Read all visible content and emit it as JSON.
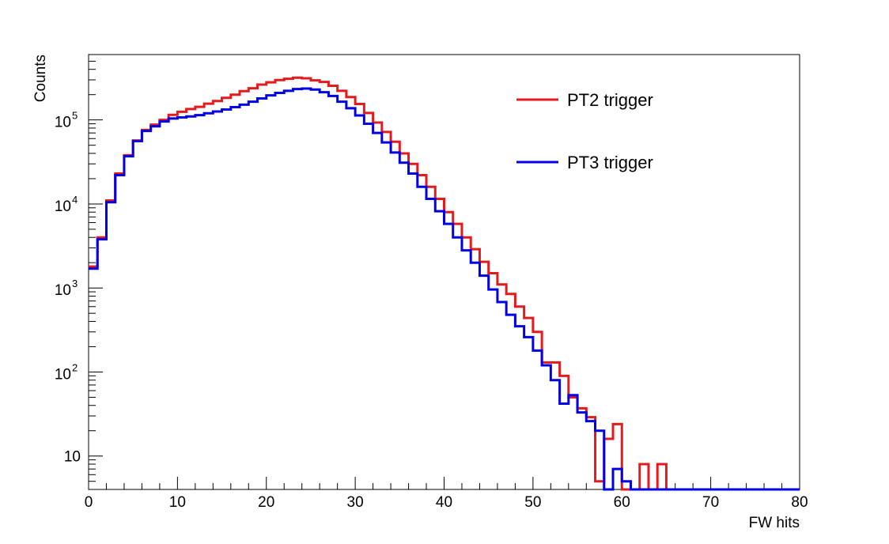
{
  "chart_data": {
    "type": "histogram-step",
    "xlabel": "FW hits",
    "ylabel": "Counts",
    "x_range": [
      0,
      80
    ],
    "y_range": [
      4,
      600000
    ],
    "y_scale": "log",
    "bin_width": 1,
    "grid": false,
    "legend_position": "top-right",
    "x_ticks": [
      0,
      10,
      20,
      30,
      40,
      50,
      60,
      70,
      80
    ],
    "y_ticks": [
      10,
      100,
      1000,
      10000,
      100000
    ],
    "y_tick_labels": [
      {
        "base": "10",
        "exp": ""
      },
      {
        "base": "10",
        "exp": "2"
      },
      {
        "base": "10",
        "exp": "3"
      },
      {
        "base": "10",
        "exp": "4"
      },
      {
        "base": "10",
        "exp": "5"
      }
    ],
    "series": [
      {
        "name": "PT2 trigger",
        "color": "#e41a1c",
        "values": [
          1800,
          4000,
          11000,
          23000,
          38000,
          57000,
          76000,
          88000,
          100000,
          115000,
          125000,
          135000,
          143000,
          156000,
          168000,
          183000,
          200000,
          220000,
          238000,
          263000,
          280000,
          298000,
          309000,
          318000,
          313000,
          296000,
          283000,
          255000,
          222000,
          187000,
          155000,
          121000,
          93000,
          72000,
          55000,
          40000,
          30000,
          22000,
          16000,
          11500,
          8000,
          5800,
          4000,
          2900,
          2050,
          1500,
          1100,
          850,
          600,
          440,
          300,
          130,
          130,
          90,
          50,
          37,
          29,
          5,
          16,
          24,
          4,
          4,
          8,
          4,
          8,
          4,
          4,
          4,
          4,
          4,
          4,
          4,
          4,
          4,
          4,
          4,
          4,
          4,
          4,
          4
        ]
      },
      {
        "name": "PT3 trigger",
        "color": "#0000e6",
        "values": [
          1700,
          3800,
          10500,
          22000,
          37000,
          56000,
          74000,
          84000,
          96000,
          104000,
          107000,
          110000,
          114000,
          120000,
          126000,
          133000,
          142000,
          152000,
          165000,
          180000,
          196000,
          210000,
          222000,
          233000,
          236000,
          230000,
          214000,
          193000,
          165000,
          138000,
          113000,
          90000,
          70000,
          54000,
          41000,
          31000,
          23000,
          16000,
          11500,
          8200,
          5800,
          4000,
          2800,
          2000,
          1400,
          960,
          680,
          480,
          350,
          260,
          180,
          120,
          80,
          42,
          53,
          33,
          26,
          20,
          4,
          7,
          5,
          4,
          4,
          4,
          4,
          4,
          4,
          4,
          4,
          4,
          4,
          4,
          4,
          4,
          4,
          4,
          4,
          4,
          4,
          4
        ]
      }
    ]
  }
}
